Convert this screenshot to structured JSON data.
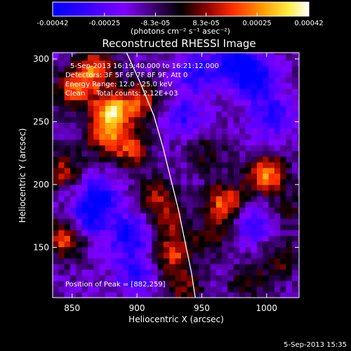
{
  "chart_data": {
    "type": "heatmap",
    "title": "Reconstructed RHESSI Image",
    "xlabel": "Heliocentric X (arcsec)",
    "ylabel": "Heliocentric Y (arcsec)",
    "xlim": [
      835,
      1025
    ],
    "ylim": [
      110,
      305
    ],
    "x_ticks": [
      850,
      900,
      950,
      1000
    ],
    "y_ticks": [
      150,
      200,
      250,
      300
    ],
    "colorbar": {
      "range": [
        -0.00042,
        0.00042
      ],
      "tick_values": [
        -0.00042,
        -0.00025,
        -8.3e-05,
        8.3e-05,
        0.00025,
        0.00042
      ],
      "tick_labels": [
        "-0.00042",
        "-0.00025",
        "-8.3e-05",
        "8.3e-05",
        "0.00025",
        "0.00042"
      ],
      "unit_label": "(photons cm⁻² s⁻¹ asec⁻²)",
      "colors": [
        "#0000ff",
        "#7f00ff",
        "#000000",
        "#ff0000",
        "#ffff00",
        "#ffffff"
      ]
    },
    "annotations": [
      "5-Sep-2013 16:19:40.000 to 16:21:12.000",
      "Detectors: 3F 5F 6F 7F 8F 9F, Att 0",
      "Energy Range: 12.0 - 25.0 keV",
      "Clean     Total counts: 2.12E+03"
    ],
    "peak_label": "Position of Peak = [882,259]",
    "peak_position": [
      882,
      259
    ],
    "limb_curve": [
      [
        892,
        305
      ],
      [
        903,
        280
      ],
      [
        913,
        255
      ],
      [
        920,
        230
      ],
      [
        926,
        205
      ],
      [
        932,
        180
      ],
      [
        937,
        155
      ],
      [
        942,
        130
      ],
      [
        945,
        110
      ]
    ],
    "sources": [
      {
        "x": 852,
        "y": 275,
        "intensity": 0.0003
      },
      {
        "x": 868,
        "y": 292,
        "intensity": 0.00033
      },
      {
        "x": 882,
        "y": 259,
        "intensity": 0.00042
      },
      {
        "x": 875,
        "y": 240,
        "intensity": 0.0003
      },
      {
        "x": 895,
        "y": 228,
        "intensity": 0.00026
      },
      {
        "x": 905,
        "y": 268,
        "intensity": 0.00025
      },
      {
        "x": 842,
        "y": 212,
        "intensity": 0.00025
      },
      {
        "x": 845,
        "y": 158,
        "intensity": 0.00035
      },
      {
        "x": 915,
        "y": 192,
        "intensity": 0.0002
      },
      {
        "x": 925,
        "y": 172,
        "intensity": 0.0002
      },
      {
        "x": 928,
        "y": 145,
        "intensity": 0.00028
      },
      {
        "x": 935,
        "y": 118,
        "intensity": 0.0002
      },
      {
        "x": 1000,
        "y": 208,
        "intensity": 0.00038
      },
      {
        "x": 968,
        "y": 185,
        "intensity": 0.00035
      },
      {
        "x": 958,
        "y": 158,
        "intensity": 0.00015
      },
      {
        "x": 955,
        "y": 225,
        "intensity": 0.00015
      },
      {
        "x": 1010,
        "y": 140,
        "intensity": 0.00018
      },
      {
        "x": 985,
        "y": 122,
        "intensity": 0.00015
      },
      {
        "x": 1018,
        "y": 178,
        "intensity": 0.00012
      }
    ],
    "dips": [
      {
        "x": 870,
        "y": 190,
        "intensity": -0.00028
      },
      {
        "x": 895,
        "y": 160,
        "intensity": -0.00026
      },
      {
        "x": 860,
        "y": 170,
        "intensity": -0.00022
      },
      {
        "x": 990,
        "y": 285,
        "intensity": -0.0003
      },
      {
        "x": 975,
        "y": 300,
        "intensity": -0.00025
      },
      {
        "x": 1005,
        "y": 255,
        "intensity": -0.00022
      },
      {
        "x": 945,
        "y": 290,
        "intensity": -0.0002
      },
      {
        "x": 990,
        "y": 170,
        "intensity": -0.0002
      },
      {
        "x": 935,
        "y": 255,
        "intensity": -0.00018
      },
      {
        "x": 900,
        "y": 130,
        "intensity": -0.0002
      }
    ]
  },
  "footer": {
    "timestamp": "5-Sep-2013 15:35"
  }
}
